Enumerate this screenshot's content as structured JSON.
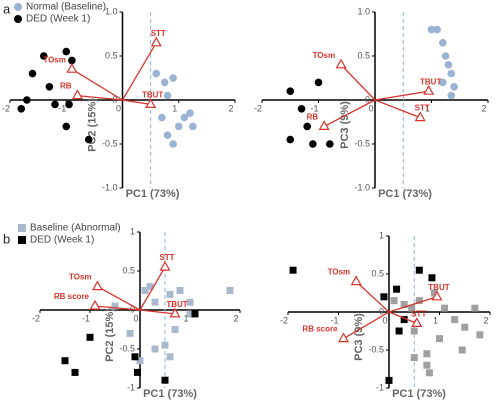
{
  "panels": [
    "a",
    "b"
  ],
  "chart_data": [
    {
      "type": "scatter",
      "x_label": "PC1 (73%)",
      "y_label": "PC2 (15%)",
      "marker": "circle",
      "legend": true,
      "xlim": [
        -2,
        2
      ],
      "ylim": [
        -1,
        1
      ],
      "xticks": [
        -2,
        -1,
        0,
        1,
        2
      ],
      "yticks": [
        {
          "value": 1,
          "label": "1.0"
        },
        0.5,
        0,
        -0.5,
        {
          "value": -1,
          "label": "-1.0"
        }
      ],
      "vline": 0.5,
      "series": [
        {
          "name": "Normal (Baseline)",
          "color": "#9ab3d5",
          "x": [
            0.6,
            0.75,
            0.9,
            0.8,
            0.7,
            1.0,
            1.2,
            1.25,
            0.9,
            0.8,
            1.1
          ],
          "y": [
            0.3,
            0.2,
            0.25,
            0.05,
            -0.2,
            -0.3,
            -0.15,
            -0.3,
            -0.5,
            -0.4,
            -0.2
          ]
        },
        {
          "name": "DED (Week 1)",
          "color": "#000000",
          "x": [
            -1.4,
            -1.0,
            -0.9,
            -1.6,
            -1.3,
            -1.7,
            -1.2,
            -1.8,
            -0.95,
            -0.6,
            -1.0
          ],
          "y": [
            0.5,
            0.55,
            0.45,
            0.3,
            0.15,
            0.0,
            -0.05,
            -0.1,
            -0.05,
            -0.45,
            -0.3
          ]
        }
      ],
      "loadings": {
        "color": "#d9342b",
        "labels": [
          "STT",
          "TOsm",
          "RB",
          "TBUT"
        ],
        "x": [
          0.6,
          -0.9,
          -0.8,
          0.5
        ],
        "y": [
          0.65,
          0.35,
          0.05,
          -0.05
        ]
      }
    },
    {
      "type": "scatter",
      "x_label": "PC1 (73%)",
      "y_label": "PC3 (9%)",
      "marker": "circle",
      "legend": false,
      "xlim": [
        -2,
        2
      ],
      "ylim": [
        -1,
        1
      ],
      "xticks": [
        -2,
        -1,
        0,
        1,
        2
      ],
      "yticks": [
        {
          "value": 1,
          "label": "1.0"
        },
        0.5,
        0,
        -0.5,
        {
          "value": -1,
          "label": "-1.0"
        }
      ],
      "vline": 0.5,
      "series": [
        {
          "color": "#9ab3d5",
          "x": [
            1.0,
            1.1,
            1.2,
            1.25,
            1.3,
            1.35,
            1.2,
            1.4,
            1.35
          ],
          "y": [
            0.8,
            0.8,
            0.65,
            0.5,
            0.4,
            0.3,
            0.2,
            0.15,
            0.05
          ]
        },
        {
          "color": "#000000",
          "x": [
            -1.0,
            -1.5,
            -1.3,
            -1.2,
            -1.5,
            -1.1,
            -0.8
          ],
          "y": [
            0.2,
            0.1,
            -0.1,
            -0.3,
            -0.45,
            -0.5,
            -0.5
          ]
        }
      ],
      "loadings": {
        "color": "#d9342b",
        "labels": [
          "TOsm",
          "TBUT",
          "RB",
          "STT"
        ],
        "x": [
          -0.6,
          0.95,
          -0.9,
          0.8
        ],
        "y": [
          0.4,
          0.1,
          -0.3,
          -0.2
        ]
      }
    },
    {
      "type": "scatter",
      "x_label": "PC1 (73%)",
      "y_label": "PC2 (15%)",
      "marker": "square",
      "legend": true,
      "xlim": [
        -2,
        2
      ],
      "ylim": [
        -1,
        1
      ],
      "xticks": [
        -2,
        -1,
        0,
        1,
        2
      ],
      "yticks": [
        1,
        0.5,
        0,
        -0.5,
        -1
      ],
      "vline": 0.5,
      "series": [
        {
          "name": "Baseline (Abnormal)",
          "color": "#a9b8cc",
          "x": [
            -0.5,
            0.1,
            0.2,
            0.3,
            0.6,
            0.8,
            1.0,
            1.8,
            0.7,
            0.3,
            0.5,
            -0.2,
            0.0,
            0.6,
            1.0
          ],
          "y": [
            0.05,
            0.25,
            0.3,
            0.1,
            0.2,
            0.25,
            0.1,
            0.25,
            -0.25,
            -0.5,
            -0.45,
            -0.3,
            -0.65,
            -0.6,
            -0.05
          ]
        },
        {
          "name": "DED (Week 1)",
          "color": "#000000",
          "x": [
            -1.0,
            -1.5,
            -1.3,
            -0.1,
            -0.05,
            1.1,
            0.5
          ],
          "y": [
            -0.35,
            -0.65,
            -0.8,
            -0.6,
            -0.8,
            -0.05,
            -0.9
          ]
        }
      ],
      "loadings": {
        "color": "#d9342b",
        "labels": [
          "TOsm",
          "RB score",
          "STT",
          "TBUT"
        ],
        "x": [
          -0.85,
          -0.9,
          0.5,
          0.7
        ],
        "y": [
          0.3,
          0.05,
          0.55,
          -0.05
        ]
      }
    },
    {
      "type": "scatter",
      "x_label": "PC1 (73%)",
      "y_label": "PC3 (9%)",
      "marker": "square",
      "legend": false,
      "xlim": [
        -2,
        2
      ],
      "ylim": [
        -1,
        1
      ],
      "xticks": [
        -2,
        -1,
        0,
        1,
        2
      ],
      "yticks": [
        1,
        0.5,
        0,
        -0.5,
        -1
      ],
      "vline": 0.5,
      "series": [
        {
          "color": "#a0a0a0",
          "x": [
            0.1,
            0.3,
            0.45,
            0.6,
            0.9,
            1.1,
            1.3,
            1.5,
            1.7,
            1.0,
            0.5,
            0.5,
            0.75,
            0.75,
            0.8,
            1.45,
            1.8
          ],
          "y": [
            0.15,
            0.1,
            0.05,
            0.15,
            0.25,
            0.05,
            -0.1,
            -0.2,
            0.05,
            -0.35,
            -0.25,
            -0.6,
            -0.55,
            -0.7,
            -0.8,
            -0.5,
            -0.3
          ]
        },
        {
          "color": "#000000",
          "x": [
            -1.9,
            -0.1,
            0.15,
            0.6,
            0.85,
            0.2,
            0.0,
            0.3
          ],
          "y": [
            0.55,
            0.2,
            0.3,
            0.55,
            0.45,
            -0.25,
            -0.9,
            -0.1
          ]
        }
      ],
      "loadings": {
        "color": "#d9342b",
        "labels": [
          "TOsm",
          "TBUT",
          "RB score",
          "STT"
        ],
        "x": [
          -0.65,
          0.95,
          -0.9,
          0.55
        ],
        "y": [
          0.4,
          0.2,
          -0.35,
          -0.15
        ]
      }
    }
  ]
}
